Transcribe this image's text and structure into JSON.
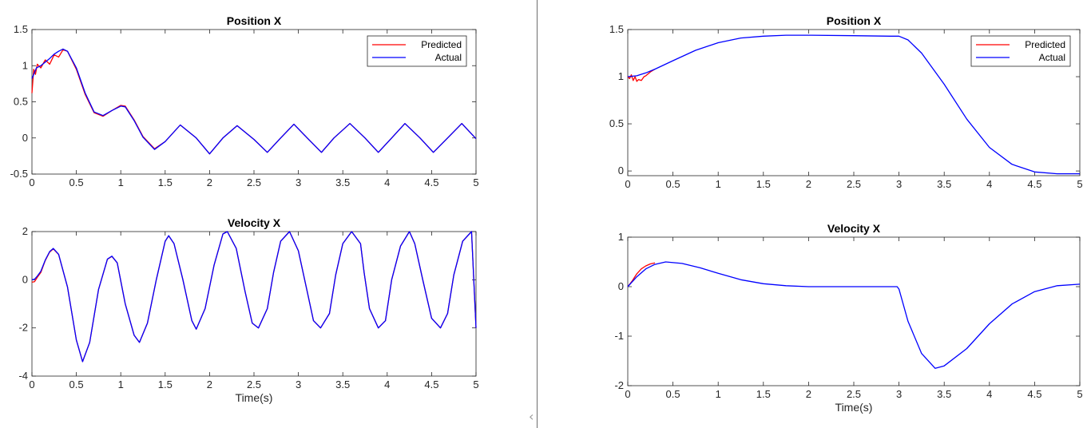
{
  "chart_data": [
    {
      "type": "line",
      "title": "Position X",
      "xlabel": "",
      "ylabel": "",
      "xlim": [
        0,
        5
      ],
      "ylim": [
        -0.5,
        1.5
      ],
      "xticks": [
        "0",
        "0.5",
        "1",
        "1.5",
        "2",
        "2.5",
        "3",
        "3.5",
        "4",
        "4.5",
        "5"
      ],
      "yticks": [
        "-0.5",
        "0",
        "0.5",
        "1",
        "1.5"
      ],
      "legend": "top-right",
      "series": [
        {
          "name": "Predicted",
          "color": "#ff0000",
          "x": [
            0,
            0.02,
            0.04,
            0.06,
            0.1,
            0.15,
            0.2,
            0.25,
            0.3,
            0.35,
            0.4,
            0.5,
            0.6,
            0.7,
            0.8,
            0.9,
            1.0,
            1.05,
            1.15,
            1.25,
            1.38,
            1.5,
            1.67,
            1.85,
            2.0,
            2.15,
            2.31,
            2.5,
            2.65,
            2.8,
            2.95,
            3.1,
            3.26,
            3.4,
            3.58,
            3.75,
            3.9,
            4.05,
            4.2,
            4.37,
            4.52,
            4.68,
            4.84,
            5.0
          ],
          "y": [
            0.62,
            0.95,
            0.88,
            1.02,
            0.97,
            1.08,
            1.02,
            1.15,
            1.12,
            1.22,
            1.2,
            0.95,
            0.6,
            0.35,
            0.3,
            0.38,
            0.45,
            0.44,
            0.25,
            0.02,
            -0.15,
            -0.05,
            0.18,
            0.0,
            -0.22,
            0.0,
            0.17,
            -0.02,
            -0.2,
            0.0,
            0.19,
            0.0,
            -0.2,
            0.0,
            0.2,
            0.0,
            -0.2,
            0.0,
            0.2,
            0.0,
            -0.2,
            0.0,
            0.2,
            -0.01
          ]
        },
        {
          "name": "Actual",
          "color": "#0000ff",
          "x": [
            0,
            0.05,
            0.1,
            0.15,
            0.2,
            0.25,
            0.3,
            0.35,
            0.4,
            0.5,
            0.6,
            0.7,
            0.8,
            0.9,
            1.0,
            1.05,
            1.15,
            1.25,
            1.38,
            1.5,
            1.67,
            1.85,
            2.0,
            2.15,
            2.31,
            2.5,
            2.65,
            2.8,
            2.95,
            3.1,
            3.26,
            3.4,
            3.58,
            3.75,
            3.9,
            4.05,
            4.2,
            4.37,
            4.52,
            4.68,
            4.84,
            5.0
          ],
          "y": [
            0.82,
            0.97,
            1.0,
            1.05,
            1.1,
            1.16,
            1.2,
            1.23,
            1.2,
            0.97,
            0.62,
            0.36,
            0.31,
            0.38,
            0.44,
            0.43,
            0.24,
            0.01,
            -0.16,
            -0.05,
            0.18,
            0.0,
            -0.22,
            0.0,
            0.17,
            -0.02,
            -0.2,
            0.0,
            0.19,
            0.0,
            -0.2,
            0.0,
            0.2,
            0.0,
            -0.2,
            0.0,
            0.2,
            0.0,
            -0.2,
            0.0,
            0.2,
            -0.01
          ]
        }
      ]
    },
    {
      "type": "line",
      "title": "Velocity X",
      "xlabel": "Time(s)",
      "ylabel": "",
      "xlim": [
        0,
        5
      ],
      "ylim": [
        -4,
        2
      ],
      "xticks": [
        "0",
        "0.5",
        "1",
        "1.5",
        "2",
        "2.5",
        "3",
        "3.5",
        "4",
        "4.5",
        "5"
      ],
      "yticks": [
        "-4",
        "-2",
        "0",
        "2"
      ],
      "series": [
        {
          "name": "",
          "color": "#ff0000",
          "x": [
            0,
            0.03,
            0.06,
            0.1,
            0.15,
            0.2,
            0.24,
            0.3,
            0.4,
            0.5,
            0.57,
            0.65,
            0.75,
            0.85,
            0.9,
            0.96,
            1.05,
            1.15,
            1.21,
            1.3,
            1.4,
            1.5,
            1.54,
            1.6,
            1.7,
            1.8,
            1.85,
            1.95,
            2.05,
            2.15,
            2.2,
            2.3,
            2.4,
            2.48,
            2.55,
            2.65,
            2.72,
            2.8,
            2.9,
            3.0,
            3.1,
            3.17,
            3.25,
            3.35,
            3.42,
            3.5,
            3.6,
            3.7,
            3.74,
            3.8,
            3.9,
            3.98,
            4.05,
            4.15,
            4.25,
            4.31,
            4.4,
            4.5,
            4.6,
            4.68,
            4.75,
            4.85,
            4.95,
            5.0
          ],
          "y": [
            -0.1,
            -0.08,
            0.1,
            0.3,
            0.8,
            1.15,
            1.28,
            1.05,
            -0.3,
            -2.5,
            -3.4,
            -2.6,
            -0.4,
            0.85,
            0.97,
            0.7,
            -1.0,
            -2.3,
            -2.6,
            -1.8,
            0.0,
            1.6,
            1.82,
            1.5,
            0.0,
            -1.7,
            -2.05,
            -1.2,
            0.6,
            1.9,
            2.0,
            1.3,
            -0.5,
            -1.8,
            -2.0,
            -1.2,
            0.3,
            1.6,
            2.0,
            1.2,
            -0.5,
            -1.7,
            -2.0,
            -1.4,
            0.2,
            1.5,
            2.0,
            1.5,
            0.3,
            -1.2,
            -2.0,
            -1.7,
            0.0,
            1.4,
            2.0,
            1.5,
            0.0,
            -1.6,
            -2.0,
            -1.4,
            0.2,
            1.6,
            2.0,
            -2.0
          ]
        },
        {
          "name": "",
          "color": "#0000ff",
          "x": [
            0,
            0.03,
            0.06,
            0.1,
            0.15,
            0.2,
            0.24,
            0.3,
            0.4,
            0.5,
            0.57,
            0.65,
            0.75,
            0.85,
            0.9,
            0.96,
            1.05,
            1.15,
            1.21,
            1.3,
            1.4,
            1.5,
            1.54,
            1.6,
            1.7,
            1.8,
            1.85,
            1.95,
            2.05,
            2.15,
            2.2,
            2.3,
            2.4,
            2.48,
            2.55,
            2.65,
            2.72,
            2.8,
            2.9,
            3.0,
            3.1,
            3.17,
            3.25,
            3.35,
            3.42,
            3.5,
            3.6,
            3.7,
            3.74,
            3.8,
            3.9,
            3.98,
            4.05,
            4.15,
            4.25,
            4.31,
            4.4,
            4.5,
            4.6,
            4.68,
            4.75,
            4.85,
            4.95,
            5.0
          ],
          "y": [
            0.0,
            0.02,
            0.15,
            0.35,
            0.82,
            1.17,
            1.3,
            1.06,
            -0.3,
            -2.5,
            -3.4,
            -2.6,
            -0.4,
            0.86,
            0.98,
            0.7,
            -1.0,
            -2.3,
            -2.6,
            -1.8,
            0.0,
            1.6,
            1.83,
            1.5,
            0.0,
            -1.7,
            -2.05,
            -1.2,
            0.6,
            1.9,
            2.0,
            1.3,
            -0.5,
            -1.8,
            -2.0,
            -1.2,
            0.3,
            1.6,
            2.0,
            1.2,
            -0.5,
            -1.7,
            -2.0,
            -1.4,
            0.2,
            1.5,
            2.0,
            1.5,
            0.3,
            -1.2,
            -2.0,
            -1.7,
            0.0,
            1.4,
            2.0,
            1.5,
            0.0,
            -1.6,
            -2.0,
            -1.4,
            0.2,
            1.6,
            2.0,
            -2.0
          ]
        }
      ]
    },
    {
      "type": "line",
      "title": "Position X",
      "xlabel": "",
      "ylabel": "",
      "xlim": [
        0,
        5
      ],
      "ylim": [
        -0.05,
        1.5
      ],
      "xticks": [
        "0",
        "0.5",
        "1",
        "1.5",
        "2",
        "2.5",
        "3",
        "3.5",
        "4",
        "4.5",
        "5"
      ],
      "yticks": [
        "0",
        "0.5",
        "1",
        "1.5"
      ],
      "legend": "top-right",
      "series": [
        {
          "name": "Predicted",
          "color": "#ff0000",
          "x": [
            0,
            0.02,
            0.04,
            0.06,
            0.08,
            0.1,
            0.12,
            0.15,
            0.18,
            0.2,
            0.25,
            0.3
          ],
          "y": [
            1.0,
            0.98,
            1.02,
            0.96,
            1.0,
            0.95,
            0.97,
            0.96,
            1.0,
            1.01,
            1.05,
            1.08
          ]
        },
        {
          "name": "Actual",
          "color": "#0000ff",
          "x": [
            0,
            0.1,
            0.2,
            0.3,
            0.5,
            0.75,
            1.0,
            1.25,
            1.5,
            1.75,
            2.0,
            2.5,
            2.9,
            3.0,
            3.1,
            3.25,
            3.5,
            3.75,
            4.0,
            4.25,
            4.5,
            4.75,
            5.0
          ],
          "y": [
            1.0,
            1.01,
            1.04,
            1.08,
            1.17,
            1.28,
            1.36,
            1.41,
            1.43,
            1.44,
            1.44,
            1.435,
            1.43,
            1.43,
            1.39,
            1.25,
            0.92,
            0.55,
            0.25,
            0.07,
            -0.01,
            -0.03,
            -0.03
          ]
        }
      ]
    },
    {
      "type": "line",
      "title": "Velocity X",
      "xlabel": "Time(s)",
      "ylabel": "",
      "xlim": [
        0,
        5
      ],
      "ylim": [
        -2,
        1
      ],
      "xticks": [
        "0",
        "0.5",
        "1",
        "1.5",
        "2",
        "2.5",
        "3",
        "3.5",
        "4",
        "4.5",
        "5"
      ],
      "yticks": [
        "-2",
        "-1",
        "0",
        "1"
      ],
      "series": [
        {
          "name": "",
          "color": "#ff0000",
          "x": [
            0,
            0.05,
            0.1,
            0.15,
            0.2,
            0.25,
            0.3
          ],
          "y": [
            0.0,
            0.12,
            0.26,
            0.36,
            0.42,
            0.46,
            0.48
          ]
        },
        {
          "name": "",
          "color": "#0000ff",
          "x": [
            0,
            0.1,
            0.2,
            0.3,
            0.42,
            0.6,
            0.8,
            1.0,
            1.25,
            1.5,
            1.75,
            2.0,
            2.5,
            2.98,
            3.0,
            3.1,
            3.25,
            3.4,
            3.5,
            3.75,
            4.0,
            4.25,
            4.5,
            4.75,
            5.0
          ],
          "y": [
            0.0,
            0.2,
            0.36,
            0.45,
            0.5,
            0.47,
            0.38,
            0.27,
            0.14,
            0.06,
            0.02,
            0.0,
            0.0,
            0.0,
            -0.05,
            -0.7,
            -1.35,
            -1.65,
            -1.6,
            -1.25,
            -0.75,
            -0.35,
            -0.1,
            0.02,
            0.05
          ]
        }
      ]
    }
  ]
}
